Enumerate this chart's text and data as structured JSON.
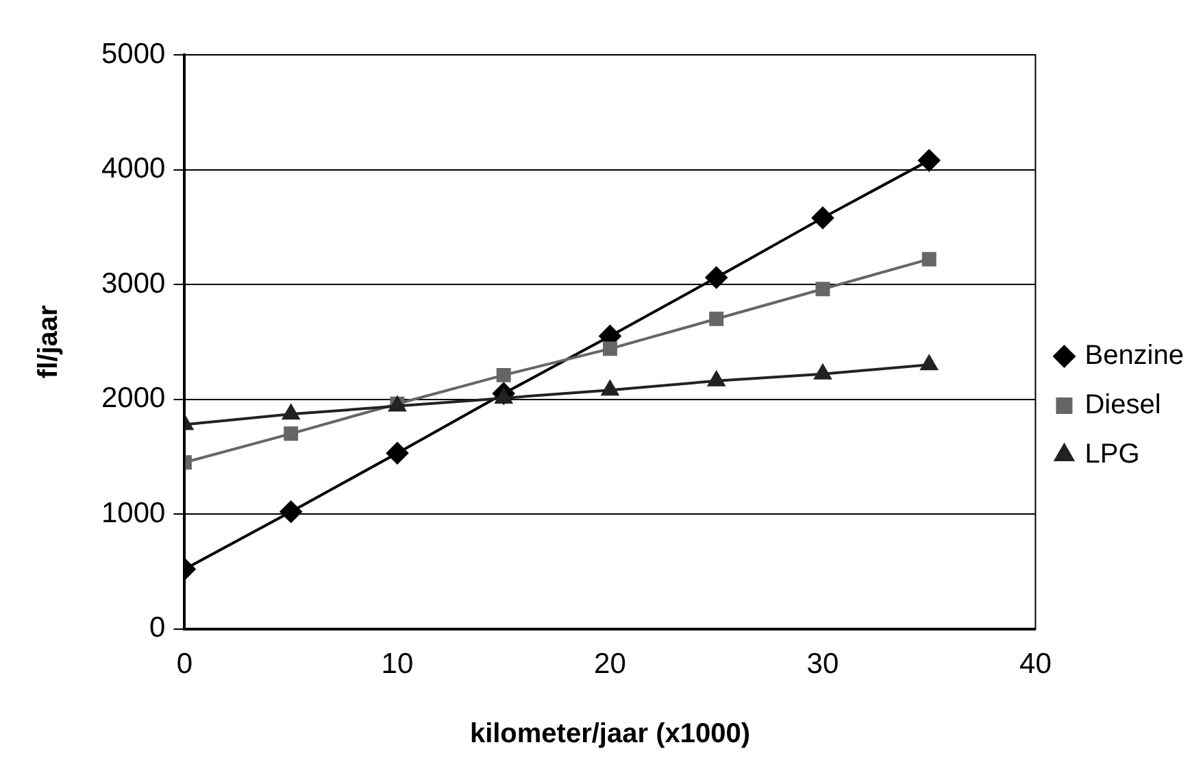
{
  "chart_data": {
    "type": "line",
    "xlabel": "kilometer/jaar (x1000)",
    "ylabel": "fl/jaar",
    "x": [
      0,
      5,
      10,
      15,
      20,
      25,
      30,
      35
    ],
    "series": [
      {
        "name": "Benzine",
        "color": "#000000",
        "marker": "diamond",
        "values": [
          520,
          1020,
          1530,
          2050,
          2550,
          3060,
          3580,
          4080
        ]
      },
      {
        "name": "Diesel",
        "color": "#666666",
        "marker": "square",
        "values": [
          1450,
          1700,
          1960,
          2210,
          2440,
          2700,
          2960,
          3220
        ]
      },
      {
        "name": "LPG",
        "color": "#222222",
        "marker": "triangle",
        "values": [
          1780,
          1870,
          1940,
          2010,
          2080,
          2160,
          2220,
          2300
        ]
      }
    ],
    "xlim": [
      0,
      40
    ],
    "xticks": [
      0,
      10,
      20,
      30,
      40
    ],
    "ylim": [
      0,
      5000
    ],
    "yticks": [
      0,
      1000,
      2000,
      3000,
      4000,
      5000
    ],
    "grid": "y",
    "legend": "right",
    "line_style": "solid"
  }
}
